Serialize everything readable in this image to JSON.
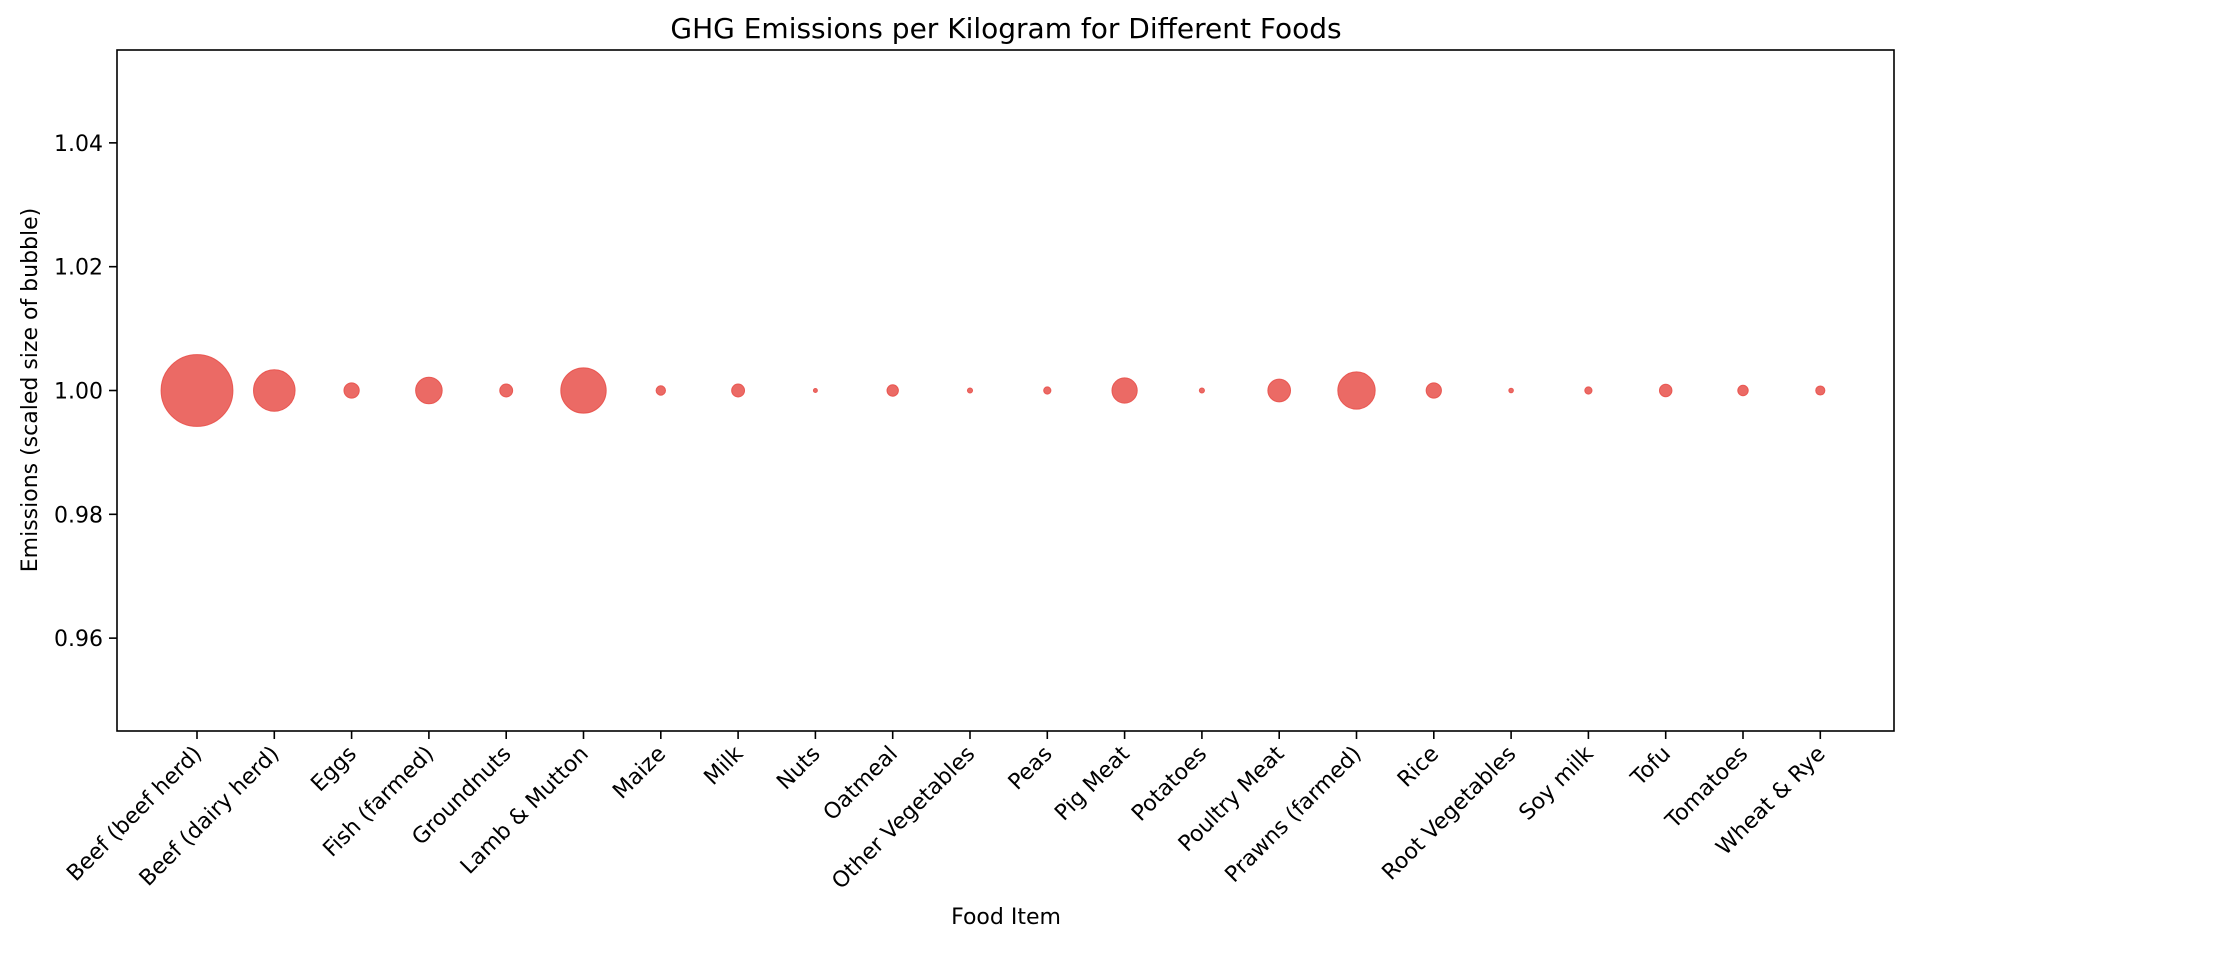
{
  "chart_data": {
    "type": "scatter",
    "title": "GHG Emissions per Kilogram for Different Foods",
    "xlabel": "Food Item",
    "ylabel": "Emissions (scaled size of bubble)",
    "categories": [
      "Beef (beef herd)",
      "Beef (dairy herd)",
      "Eggs",
      "Fish (farmed)",
      "Groundnuts",
      "Lamb & Mutton",
      "Maize",
      "Milk",
      "Nuts",
      "Oatmeal",
      "Other Vegetables",
      "Peas",
      "Pig Meat",
      "Potatoes",
      "Poultry Meat",
      "Prawns (farmed)",
      "Rice",
      "Root Vegetables",
      "Soy milk",
      "Tofu",
      "Tomatoes",
      "Wheat & Rye"
    ],
    "y": [
      1,
      1,
      1,
      1,
      1,
      1,
      1,
      1,
      1,
      1,
      1,
      1,
      1,
      1,
      1,
      1,
      1,
      1,
      1,
      1,
      1,
      1
    ],
    "bubble_size": [
      99.5,
      33.3,
      4.5,
      13.6,
      3.2,
      39.7,
      1.7,
      3.2,
      0.3,
      2.5,
      0.5,
      1.0,
      12.3,
      0.5,
      9.9,
      26.9,
      4.5,
      0.4,
      1.0,
      3.0,
      2.1,
      1.6
    ],
    "ylim": [
      0.945,
      1.055
    ],
    "yticks": [
      "0.96",
      "0.98",
      "1.00",
      "1.02",
      "1.04"
    ],
    "grid": false,
    "colors": {
      "bubble": "#e8504a"
    }
  }
}
